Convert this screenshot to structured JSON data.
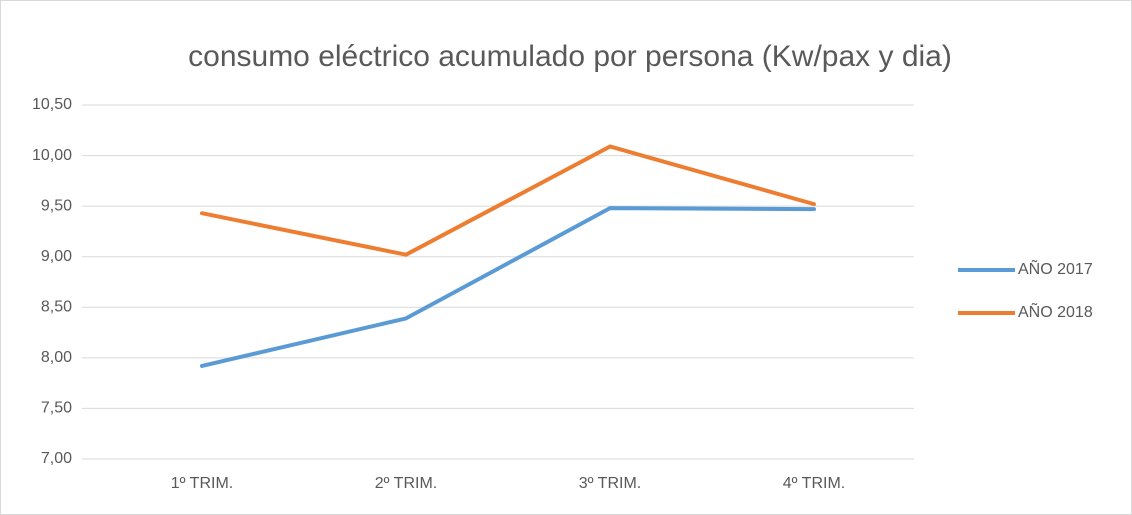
{
  "chart_data": {
    "type": "line",
    "title": "consumo eléctrico acumulado por persona (Kw/pax y dia)",
    "categories": [
      "1º TRIM.",
      "2º TRIM.",
      "3º TRIM.",
      "4º TRIM."
    ],
    "series": [
      {
        "name": "AÑO 2017",
        "color": "#5b9bd5",
        "values": [
          7.92,
          8.39,
          9.48,
          9.47
        ]
      },
      {
        "name": "AÑO 2018",
        "color": "#ed7d31",
        "values": [
          9.43,
          9.02,
          10.09,
          9.52
        ]
      }
    ],
    "ylim": [
      7,
      10.5
    ],
    "yticks": [
      {
        "value": 7,
        "label": "7,00"
      },
      {
        "value": 7.5,
        "label": "7,50"
      },
      {
        "value": 8,
        "label": "8,00"
      },
      {
        "value": 8.5,
        "label": "8,50"
      },
      {
        "value": 9,
        "label": "9,00"
      },
      {
        "value": 9.5,
        "label": "9,50"
      },
      {
        "value": 10,
        "label": "10,00"
      },
      {
        "value": 10.5,
        "label": "10,50"
      }
    ],
    "grid": true,
    "legend": "right"
  }
}
